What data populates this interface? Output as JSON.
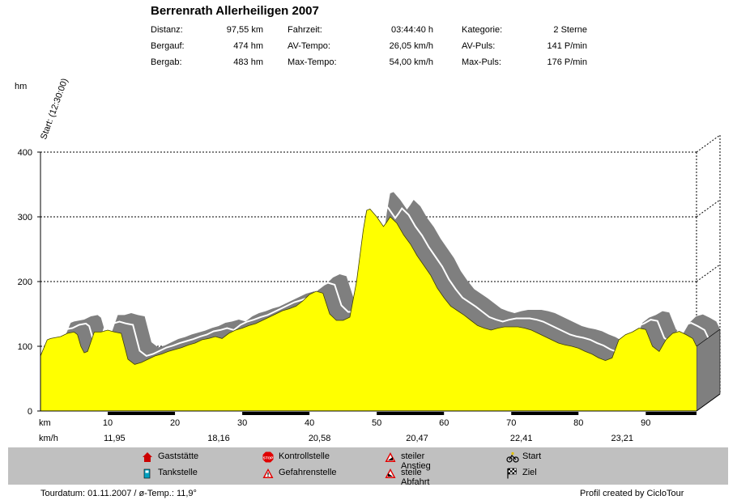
{
  "title": "Berrenrath Allerheiligen 2007",
  "stats": [
    [
      {
        "label": "Distanz:",
        "value": "97,55 km"
      },
      {
        "label": "Fahrzeit:",
        "value": "03:44:40 h"
      },
      {
        "label": "Kategorie:",
        "value": "2 Sterne"
      }
    ],
    [
      {
        "label": "Bergauf:",
        "value": "474 hm"
      },
      {
        "label": "AV-Tempo:",
        "value": "26,05 km/h"
      },
      {
        "label": "AV-Puls:",
        "value": "141 P/min"
      }
    ],
    [
      {
        "label": "Bergab:",
        "value": "483 hm"
      },
      {
        "label": "Max-Tempo:",
        "value": "54,00 km/h"
      },
      {
        "label": "Max-Puls:",
        "value": "176 P/min"
      }
    ]
  ],
  "start_label": "Start: (12:30:00)",
  "chart_data": {
    "type": "area",
    "ylabel": "hm",
    "xlabel": "km",
    "ylim": [
      0,
      400
    ],
    "xlim": [
      0,
      97.55
    ],
    "yticks": [
      "0",
      "100",
      "200",
      "300",
      "400"
    ],
    "xticks": [
      {
        "x": 10,
        "label": "10"
      },
      {
        "x": 20,
        "label": "20"
      },
      {
        "x": 30,
        "label": "30"
      },
      {
        "x": 40,
        "label": "40"
      },
      {
        "x": 50,
        "label": "50"
      },
      {
        "x": 60,
        "label": "60"
      },
      {
        "x": 70,
        "label": "70"
      },
      {
        "x": 80,
        "label": "80"
      },
      {
        "x": 90,
        "label": "90"
      }
    ],
    "speed_row_label": "km/h",
    "speeds": [
      {
        "x": 11,
        "label": "11,95"
      },
      {
        "x": 26.5,
        "label": "18,16"
      },
      {
        "x": 41.5,
        "label": "20,58"
      },
      {
        "x": 56,
        "label": "20,47"
      },
      {
        "x": 71.5,
        "label": "22,41"
      },
      {
        "x": 86.5,
        "label": "23,21"
      }
    ],
    "segments": [
      [
        10,
        20
      ],
      [
        30,
        40
      ],
      [
        50,
        60
      ],
      [
        70,
        80
      ],
      [
        90,
        97.55
      ]
    ],
    "grid": true,
    "fill_color": "#ffff00",
    "shadow_color": "#7f7f7f",
    "profile": {
      "x": [
        0,
        1,
        1.5,
        3,
        4,
        5,
        5.5,
        6,
        6.5,
        7,
        8,
        9,
        10,
        11,
        12,
        12.5,
        13,
        14,
        15,
        16,
        17,
        18,
        19,
        20,
        21,
        22,
        23,
        24,
        25,
        26,
        27,
        28,
        29,
        30,
        31,
        32,
        33,
        34,
        35,
        36,
        37,
        38,
        39,
        40,
        41,
        42,
        43,
        44,
        45,
        46,
        47,
        48,
        48.5,
        49,
        50,
        51,
        51.5,
        52,
        53,
        54,
        55,
        56,
        57,
        58,
        59,
        60,
        61,
        62,
        63,
        64,
        65,
        66,
        67,
        68,
        69,
        70,
        71,
        72,
        73,
        74,
        75,
        76,
        77,
        78,
        79,
        80,
        81,
        82,
        83,
        84,
        85,
        86,
        87,
        88,
        89,
        90,
        91,
        92,
        93,
        94,
        95,
        96,
        97,
        97.55
      ],
      "y": [
        85,
        110,
        112,
        115,
        120,
        122,
        118,
        100,
        90,
        92,
        122,
        122,
        125,
        122,
        120,
        100,
        80,
        72,
        75,
        80,
        85,
        88,
        92,
        95,
        98,
        102,
        105,
        110,
        112,
        115,
        112,
        120,
        125,
        128,
        132,
        135,
        140,
        145,
        150,
        155,
        158,
        162,
        170,
        180,
        185,
        182,
        150,
        140,
        140,
        145,
        200,
        280,
        310,
        312,
        300,
        285,
        292,
        300,
        290,
        272,
        258,
        240,
        225,
        210,
        190,
        175,
        162,
        155,
        148,
        140,
        132,
        128,
        125,
        128,
        130,
        130,
        130,
        128,
        125,
        120,
        115,
        110,
        105,
        102,
        100,
        97,
        92,
        88,
        82,
        78,
        82,
        110,
        118,
        122,
        128,
        126,
        100,
        92,
        110,
        120,
        123,
        118,
        112,
        100
      ]
    }
  },
  "legend": [
    {
      "icon": "gaststaette-icon",
      "label": "Gaststätte"
    },
    {
      "icon": "tankstelle-icon",
      "label": "Tankstelle"
    },
    {
      "icon": "stop-icon",
      "label": "Kontrollstelle"
    },
    {
      "icon": "warning-icon",
      "label": "Gefahrenstelle"
    },
    {
      "icon": "steep-ascent-icon",
      "label": "steiler Anstieg"
    },
    {
      "icon": "steep-descent-icon",
      "label": "steile Abfahrt"
    },
    {
      "icon": "bicycle-icon",
      "label": "Start"
    },
    {
      "icon": "checkered-flag-icon",
      "label": "Ziel"
    }
  ],
  "footer": {
    "tour_info": "Tourdatum: 01.11.2007  /  ø-Temp.: 11,9°",
    "credit": "Profil created by CicloTour"
  }
}
